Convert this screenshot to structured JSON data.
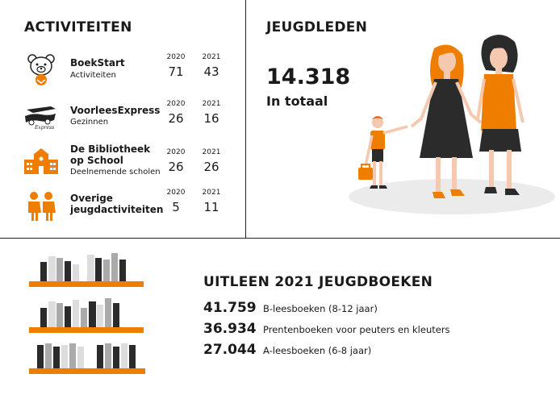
{
  "activities": {
    "heading": "ACTIVITEITEN",
    "items": [
      {
        "title": "BoekStart",
        "subtitle": "Activiteiten",
        "year1": "2020",
        "year2": "2021",
        "value1": "71",
        "value2": "43",
        "icon": "bear-baby-icon"
      },
      {
        "title": "VoorleesExpress",
        "subtitle": "Gezinnen",
        "year1": "2020",
        "year2": "2021",
        "value1": "26",
        "value2": "16",
        "icon": "voorleesexpress-logo"
      },
      {
        "title": "De Bibliotheek\nop School",
        "subtitle": "Deelnemende scholen",
        "year1": "2020",
        "year2": "2021",
        "value1": "26",
        "value2": "26",
        "icon": "school-icon"
      },
      {
        "title": "Overige\njeugdactiviteiten",
        "subtitle": "",
        "year1": "2020",
        "year2": "2021",
        "value1": "5",
        "value2": "11",
        "icon": "children-icon"
      }
    ]
  },
  "members": {
    "heading": "JEUGDLEDEN",
    "total": "14.318",
    "total_label": "In totaal"
  },
  "loans": {
    "heading": "UITLEEN 2021 JEUGDBOEKEN",
    "rows": [
      {
        "number": "41.759",
        "label": "B-leesboeken (8-12 jaar)"
      },
      {
        "number": "36.934",
        "label": "Prentenboeken voor peuters en kleuters"
      },
      {
        "number": "27.044",
        "label": "A-leesboeken (6-8 jaar)"
      }
    ]
  },
  "colors": {
    "accent": "#ef7d00",
    "dark": "#2b2b2b",
    "grey": "#b3b3b3"
  }
}
